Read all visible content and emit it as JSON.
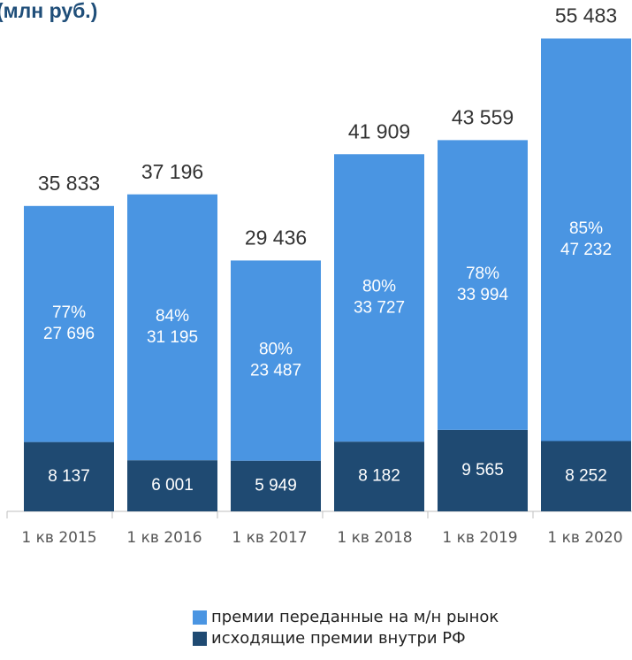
{
  "chart_data": {
    "type": "stacked_bar",
    "title": "(млн руб.)",
    "categories": [
      "1 кв 2015",
      "1 кв 2016",
      "1 кв 2017",
      "1 кв 2018",
      "1 кв 2019",
      "1 кв 2020"
    ],
    "series": [
      {
        "name": "исходящие премии внутри РФ",
        "color": "#1f4a72",
        "values": [
          8137,
          6001,
          5949,
          8182,
          9565,
          8252
        ],
        "value_labels": [
          "8 137",
          "6 001",
          "5 949",
          "8 182",
          "9 565",
          "8 252"
        ]
      },
      {
        "name": "премии переданные на м/н рынок",
        "color": "#4a95e2",
        "values": [
          27696,
          31195,
          23487,
          33727,
          33994,
          47232
        ],
        "value_labels": [
          "27 696",
          "31 195",
          "23 487",
          "33 727",
          "33 994",
          "47 232"
        ],
        "percent": [
          77,
          84,
          80,
          80,
          78,
          85
        ],
        "percent_labels": [
          "77%",
          "84%",
          "80%",
          "80%",
          "78%",
          "85%"
        ]
      }
    ],
    "totals": {
      "values": [
        35833,
        37196,
        29436,
        41909,
        43559,
        55483
      ],
      "value_labels": [
        "35 833",
        "37 196",
        "29 436",
        "41 909",
        "43 559",
        "55 483"
      ]
    },
    "ylim": [
      0,
      60000
    ]
  }
}
